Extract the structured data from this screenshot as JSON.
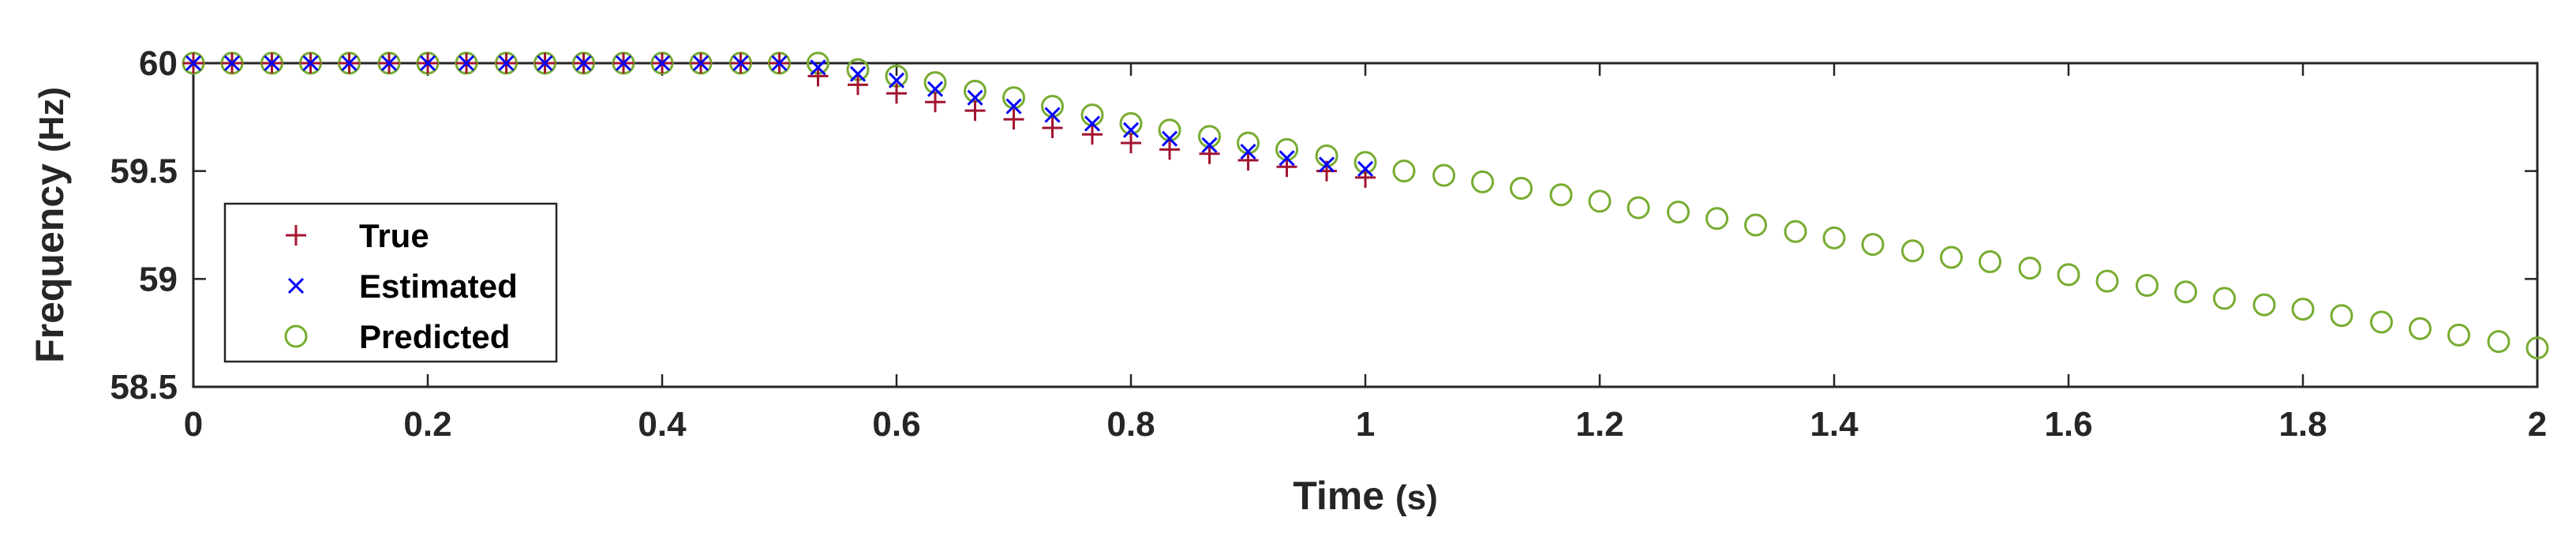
{
  "chart_data": {
    "type": "scatter",
    "title": "",
    "xlabel": "Time",
    "xlabel_unit": "(s)",
    "ylabel": "Frequency",
    "ylabel_unit": "(Hz)",
    "xlim": [
      0,
      2
    ],
    "ylim": [
      58.5,
      60
    ],
    "xticks": [
      0,
      0.2,
      0.4,
      0.6,
      0.8,
      1,
      1.2,
      1.4,
      1.6,
      1.8,
      2
    ],
    "xtick_labels": [
      "0",
      "0.2",
      "0.4",
      "0.6",
      "0.8",
      "1",
      "1.2",
      "1.4",
      "1.6",
      "1.8",
      "2"
    ],
    "yticks": [
      58.5,
      59,
      59.5,
      60
    ],
    "ytick_labels": [
      "58.5",
      "59",
      "59.5",
      "60"
    ],
    "grid": false,
    "legend_position": "bottom-left",
    "series": [
      {
        "name": "True",
        "marker": "plus",
        "color": "#A2142F",
        "x": [
          0,
          0.033,
          0.067,
          0.1,
          0.133,
          0.167,
          0.2,
          0.233,
          0.267,
          0.3,
          0.333,
          0.367,
          0.4,
          0.433,
          0.467,
          0.5,
          0.533,
          0.567,
          0.6,
          0.633,
          0.667,
          0.7,
          0.733,
          0.767,
          0.8,
          0.833,
          0.867,
          0.9,
          0.933,
          0.967,
          1
        ],
        "y": [
          60,
          60,
          60,
          60,
          60,
          60,
          60,
          60,
          60,
          60,
          60,
          60,
          60,
          60,
          60,
          60,
          59.94,
          59.9,
          59.86,
          59.82,
          59.78,
          59.74,
          59.7,
          59.67,
          59.63,
          59.6,
          59.58,
          59.55,
          59.52,
          59.5,
          59.47
        ]
      },
      {
        "name": "Estimated",
        "marker": "x",
        "color": "#0000FF",
        "x": [
          0,
          0.033,
          0.067,
          0.1,
          0.133,
          0.167,
          0.2,
          0.233,
          0.267,
          0.3,
          0.333,
          0.367,
          0.4,
          0.433,
          0.467,
          0.5,
          0.533,
          0.567,
          0.6,
          0.633,
          0.667,
          0.7,
          0.733,
          0.767,
          0.8,
          0.833,
          0.867,
          0.9,
          0.933,
          0.967,
          1
        ],
        "y": [
          60,
          60,
          60,
          60,
          60,
          60,
          60,
          60,
          60,
          60,
          60,
          60,
          60,
          60,
          60,
          60,
          59.98,
          59.95,
          59.92,
          59.88,
          59.84,
          59.8,
          59.76,
          59.72,
          59.69,
          59.65,
          59.62,
          59.59,
          59.56,
          59.53,
          59.51
        ]
      },
      {
        "name": "Predicted",
        "marker": "circle",
        "color": "#77AC30",
        "x": [
          0,
          0.033,
          0.067,
          0.1,
          0.133,
          0.167,
          0.2,
          0.233,
          0.267,
          0.3,
          0.333,
          0.367,
          0.4,
          0.433,
          0.467,
          0.5,
          0.533,
          0.567,
          0.6,
          0.633,
          0.667,
          0.7,
          0.733,
          0.767,
          0.8,
          0.833,
          0.867,
          0.9,
          0.933,
          0.967,
          1,
          1.033,
          1.067,
          1.1,
          1.133,
          1.167,
          1.2,
          1.233,
          1.267,
          1.3,
          1.333,
          1.367,
          1.4,
          1.433,
          1.467,
          1.5,
          1.533,
          1.567,
          1.6,
          1.633,
          1.667,
          1.7,
          1.733,
          1.767,
          1.8,
          1.833,
          1.867,
          1.9,
          1.933,
          1.967,
          2
        ],
        "y": [
          60,
          60,
          60,
          60,
          60,
          60,
          60,
          60,
          60,
          60,
          60,
          60,
          60,
          60,
          60,
          60,
          60,
          59.97,
          59.94,
          59.91,
          59.87,
          59.84,
          59.8,
          59.76,
          59.72,
          59.69,
          59.66,
          59.63,
          59.6,
          59.57,
          59.54,
          59.5,
          59.48,
          59.45,
          59.42,
          59.39,
          59.36,
          59.33,
          59.31,
          59.28,
          59.25,
          59.22,
          59.19,
          59.16,
          59.13,
          59.1,
          59.08,
          59.05,
          59.02,
          58.99,
          58.97,
          58.94,
          58.91,
          58.88,
          58.86,
          58.83,
          58.8,
          58.77,
          58.74,
          58.71,
          58.68
        ]
      }
    ]
  }
}
